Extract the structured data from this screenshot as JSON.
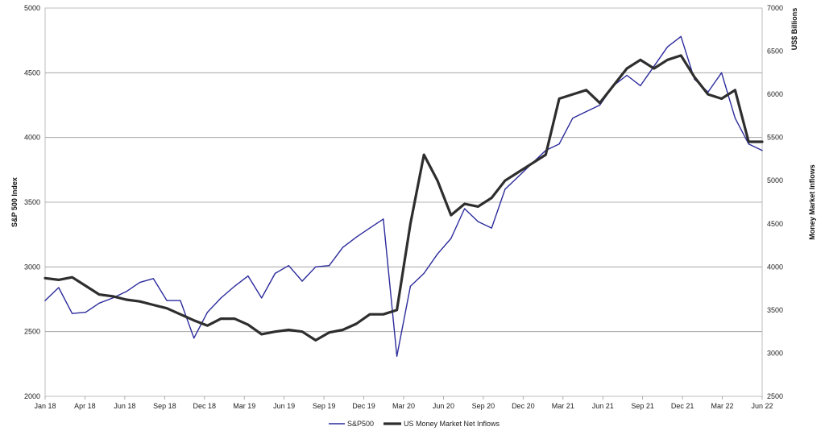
{
  "chart_data": {
    "type": "line",
    "title": "",
    "xlabel": "",
    "ylabel_left": "S&P 500 Index",
    "ylabel_right_top": "US$ Billions",
    "ylabel_right": "Money Market Inflows",
    "ylim_left": [
      2000,
      5000
    ],
    "ylim_right": [
      2500,
      7000
    ],
    "yticks_left": [
      "2000",
      "2500",
      "3000",
      "3500",
      "4000",
      "4500",
      "5000"
    ],
    "yticks_right": [
      "2500",
      "3000",
      "3500",
      "4000",
      "4500",
      "5000",
      "5500",
      "6000",
      "6500",
      "7000"
    ],
    "xticks": [
      "Jan 18",
      "Apr 18",
      "Jun 18",
      "Sep 18",
      "Dec 18",
      "Mar 19",
      "Jun 19",
      "Sep 19",
      "Dec 19",
      "Mar 20",
      "Jun 20",
      "Sep 20",
      "Dec 20",
      "Mar 21",
      "Jun 21",
      "Sep 21",
      "Dec 21",
      "Mar 22",
      "Jun 22"
    ],
    "grid": "horizontal",
    "legend_position": "bottom-center",
    "series": [
      {
        "name": "S&P500",
        "axis": "left",
        "color": "#2b2b9c",
        "x": [
          "Jan 18",
          "Feb 18",
          "Mar 18",
          "Apr 18",
          "May 18",
          "Jun 18",
          "Jul 18",
          "Aug 18",
          "Sep 18",
          "Oct 18",
          "Nov 18",
          "Dec 18",
          "Jan 19",
          "Feb 19",
          "Mar 19",
          "Apr 19",
          "May 19",
          "Jun 19",
          "Jul 19",
          "Aug 19",
          "Sep 19",
          "Oct 19",
          "Nov 19",
          "Dec 19",
          "Jan 20",
          "Feb 20",
          "Mar 20",
          "Apr 20",
          "May 20",
          "Jun 20",
          "Jul 20",
          "Aug 20",
          "Sep 20",
          "Oct 20",
          "Nov 20",
          "Dec 20",
          "Jan 21",
          "Feb 21",
          "Mar 21",
          "Apr 21",
          "May 21",
          "Jun 21",
          "Jul 21",
          "Aug 21",
          "Sep 21",
          "Oct 21",
          "Nov 21",
          "Dec 21",
          "Jan 22",
          "Feb 22",
          "Mar 22",
          "Apr 22",
          "May 22",
          "Jun 22"
        ],
        "values": [
          2740,
          2840,
          2640,
          2650,
          2720,
          2760,
          2810,
          2880,
          2910,
          2740,
          2740,
          2450,
          2650,
          2760,
          2850,
          2930,
          2760,
          2950,
          3010,
          2890,
          3000,
          3010,
          3150,
          3230,
          3300,
          3370,
          2310,
          2850,
          2950,
          3100,
          3220,
          3450,
          3350,
          3300,
          3600,
          3700,
          3800,
          3900,
          3950,
          4150,
          4200,
          4250,
          4400,
          4480,
          4400,
          4550,
          4700,
          4780,
          4450,
          4350,
          4500,
          4150,
          3950,
          3900
        ]
      },
      {
        "name": "US Money Market Net Inflows",
        "axis": "right",
        "color": "#2e2e2e",
        "x": [
          "Jan 18",
          "Feb 18",
          "Mar 18",
          "Apr 18",
          "May 18",
          "Jun 18",
          "Jul 18",
          "Aug 18",
          "Sep 18",
          "Oct 18",
          "Nov 18",
          "Dec 18",
          "Jan 19",
          "Feb 19",
          "Mar 19",
          "Apr 19",
          "May 19",
          "Jun 19",
          "Jul 19",
          "Aug 19",
          "Sep 19",
          "Oct 19",
          "Nov 19",
          "Dec 19",
          "Jan 20",
          "Feb 20",
          "Mar 20",
          "Apr 20",
          "May 20",
          "Jun 20",
          "Jul 20",
          "Aug 20",
          "Sep 20",
          "Oct 20",
          "Nov 20",
          "Dec 20",
          "Jan 21",
          "Feb 21",
          "Mar 21",
          "Apr 21",
          "May 21",
          "Jun 21",
          "Jul 21",
          "Aug 21",
          "Sep 21",
          "Oct 21",
          "Nov 21",
          "Dec 21",
          "Jan 22",
          "Feb 22",
          "Mar 22",
          "Apr 22",
          "May 22",
          "Jun 22"
        ],
        "values": [
          3870,
          3850,
          3880,
          3780,
          3680,
          3660,
          3620,
          3600,
          3560,
          3520,
          3450,
          3380,
          3320,
          3400,
          3400,
          3330,
          3220,
          3250,
          3270,
          3250,
          3150,
          3240,
          3270,
          3340,
          3450,
          3450,
          3500,
          4500,
          5300,
          5000,
          4600,
          4730,
          4700,
          4800,
          5000,
          5100,
          5200,
          5300,
          5950,
          6000,
          6050,
          5900,
          6100,
          6300,
          6400,
          6300,
          6400,
          6450,
          6200,
          6000,
          5950,
          6050,
          5450,
          5450
        ]
      }
    ]
  }
}
